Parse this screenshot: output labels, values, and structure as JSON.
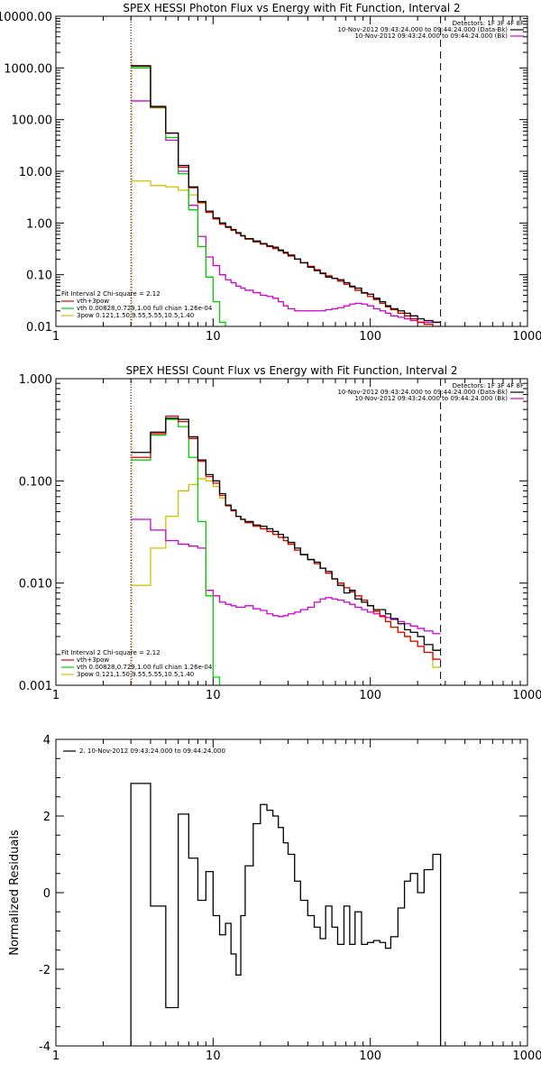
{
  "colors": {
    "data": "#000000",
    "red": "#e00000",
    "green": "#00d000",
    "magenta": "#d000d0",
    "yellow": "#d0c000",
    "orange": "#f08000"
  },
  "chart_data": [
    {
      "type": "line",
      "title": "SPEX HESSI Photon Flux vs Energy with Fit Function, Interval 2",
      "xlabel": "",
      "ylabel": "",
      "xscale": "log",
      "yscale": "log",
      "xlim": [
        1,
        1000
      ],
      "ylim": [
        0.01,
        10000
      ],
      "xticks": [
        "1",
        "10",
        "100",
        "1000"
      ],
      "yticks": [
        "0.01",
        "0.10",
        "1.00",
        "10.00",
        "100.00",
        "1000.00",
        "10000.00"
      ],
      "legend_right": [
        "Detectors: 1F 3F 4F 8F",
        "10-Nov-2012 09:43:24.000 to 09:44:24.000 (Data-Bk)",
        "10-Nov-2012 09:43:24.000 to 09:44:24.000 (Bk)"
      ],
      "legend_left": [
        "Fit Interval  2   Chi-square = 2.12",
        "vth+3pow",
        "vth 0.00828,0.729,1.00  full chian 1.26e-04",
        "3pow 0.121,1.50,9.55,5.55,10.5,1.40"
      ],
      "vlines": [
        3,
        280
      ],
      "edges": [
        3,
        4,
        5,
        6,
        7,
        8,
        9,
        10,
        11,
        12,
        13,
        14,
        15,
        16,
        18,
        20,
        22,
        24,
        26,
        28,
        30,
        33,
        36,
        40,
        44,
        48,
        52,
        57,
        62,
        68,
        74,
        80,
        88,
        96,
        105,
        115,
        125,
        135,
        150,
        165,
        180,
        200,
        220,
        250,
        280
      ],
      "series": [
        {
          "name": "Data-Bk",
          "color": "data",
          "values": [
            1100,
            180,
            55,
            13,
            5,
            2.6,
            1.7,
            1.25,
            1.0,
            0.85,
            0.75,
            0.65,
            0.57,
            0.5,
            0.45,
            0.4,
            0.36,
            0.34,
            0.3,
            0.27,
            0.24,
            0.2,
            0.17,
            0.14,
            0.12,
            0.105,
            0.09,
            0.085,
            0.08,
            0.07,
            0.06,
            0.055,
            0.045,
            0.042,
            0.035,
            0.03,
            0.025,
            0.022,
            0.02,
            0.018,
            0.016,
            0.014,
            0.013,
            0.012
          ]
        },
        {
          "name": "vth+3pow",
          "color": "red",
          "values": [
            1080,
            175,
            55,
            12,
            4.8,
            2.5,
            1.6,
            1.2,
            0.95,
            0.82,
            0.72,
            0.63,
            0.56,
            0.49,
            0.43,
            0.39,
            0.35,
            0.32,
            0.29,
            0.26,
            0.23,
            0.2,
            0.17,
            0.145,
            0.125,
            0.108,
            0.095,
            0.085,
            0.075,
            0.065,
            0.058,
            0.05,
            0.044,
            0.038,
            0.033,
            0.028,
            0.024,
            0.021,
            0.018,
            0.016,
            0.014,
            0.012,
            0.011,
            0.01
          ]
        },
        {
          "name": "vth",
          "color": "green",
          "values": [
            1000,
            170,
            45,
            9,
            1.8,
            0.35,
            0.09,
            0.03,
            0.012
          ]
        },
        {
          "name": "3pow",
          "color": "yellow",
          "values": [
            6.5,
            5.3,
            5.0,
            4.3,
            3.5,
            2.4,
            1.7,
            1.2,
            0.95,
            0.82,
            0.72,
            0.63,
            0.56,
            0.49,
            0.43,
            0.39,
            0.35,
            0.32,
            0.29,
            0.26,
            0.23,
            0.2,
            0.17,
            0.145,
            0.125,
            0.108,
            0.095,
            0.085,
            0.075,
            0.065,
            0.058,
            0.05,
            0.044,
            0.038,
            0.033,
            0.028,
            0.024,
            0.021,
            0.018,
            0.016,
            0.014,
            0.012,
            0.011,
            0.01
          ]
        },
        {
          "name": "Bk",
          "color": "magenta",
          "values": [
            230,
            170,
            40,
            10,
            2.2,
            0.55,
            0.22,
            0.15,
            0.1,
            0.08,
            0.07,
            0.06,
            0.055,
            0.05,
            0.045,
            0.04,
            0.038,
            0.035,
            0.03,
            0.025,
            0.022,
            0.02,
            0.02,
            0.02,
            0.02,
            0.02,
            0.021,
            0.022,
            0.023,
            0.025,
            0.027,
            0.028,
            0.027,
            0.025,
            0.022,
            0.02,
            0.018,
            0.016,
            0.015,
            0.014,
            0.013,
            0.012,
            0.012,
            0.012
          ]
        }
      ]
    },
    {
      "type": "line",
      "title": "SPEX HESSI Count Flux vs Energy with Fit Function, Interval 2",
      "xlabel": "",
      "ylabel": "",
      "xscale": "log",
      "yscale": "log",
      "xlim": [
        1,
        1000
      ],
      "ylim": [
        0.001,
        1
      ],
      "xticks": [
        "1",
        "10",
        "100",
        "1000"
      ],
      "yticks": [
        "0.001",
        "0.010",
        "0.100",
        "1.000"
      ],
      "legend_right": [
        "Detectors: 1F 3F 4F 8F",
        "10-Nov-2012 09:43:24.000 to 09:44:24.000 (Data-Bk)",
        "10-Nov-2012 09:43:24.000 to 09:44:24.000 (Bk)"
      ],
      "legend_left": [
        "Fit Interval  2   Chi-square = 2.12",
        "vth+3pow",
        "vth 0.00828,0.729,1.00  full chian 1.26e-04",
        "3pow 0.121,1.50,9.55,5.55,10.5,1.40"
      ],
      "vlines": [
        3,
        280
      ],
      "edges": [
        3,
        4,
        5,
        6,
        7,
        8,
        9,
        10,
        11,
        12,
        13,
        14,
        15,
        16,
        18,
        20,
        22,
        24,
        26,
        28,
        30,
        33,
        36,
        40,
        44,
        48,
        52,
        57,
        62,
        68,
        74,
        80,
        88,
        96,
        105,
        115,
        125,
        135,
        150,
        165,
        180,
        200,
        220,
        250,
        280
      ],
      "series": [
        {
          "name": "Data-Bk",
          "color": "data",
          "values": [
            0.19,
            0.3,
            0.41,
            0.4,
            0.27,
            0.16,
            0.115,
            0.1,
            0.075,
            0.058,
            0.052,
            0.045,
            0.042,
            0.04,
            0.037,
            0.036,
            0.034,
            0.032,
            0.03,
            0.028,
            0.025,
            0.022,
            0.019,
            0.017,
            0.016,
            0.014,
            0.013,
            0.011,
            0.0095,
            0.008,
            0.0085,
            0.007,
            0.0065,
            0.006,
            0.0055,
            0.0055,
            0.005,
            0.0045,
            0.004,
            0.0035,
            0.0033,
            0.003,
            0.0025,
            0.0022
          ]
        },
        {
          "name": "vth+3pow",
          "color": "red",
          "values": [
            0.17,
            0.29,
            0.43,
            0.38,
            0.26,
            0.155,
            0.11,
            0.095,
            0.072,
            0.057,
            0.051,
            0.045,
            0.042,
            0.039,
            0.036,
            0.034,
            0.032,
            0.03,
            0.028,
            0.026,
            0.024,
            0.021,
            0.019,
            0.017,
            0.0155,
            0.014,
            0.0125,
            0.011,
            0.01,
            0.009,
            0.0082,
            0.0075,
            0.0068,
            0.006,
            0.0053,
            0.0047,
            0.0042,
            0.0037,
            0.0033,
            0.003,
            0.0027,
            0.0024,
            0.0021,
            0.0018
          ]
        },
        {
          "name": "vth",
          "color": "green",
          "values": [
            0.16,
            0.28,
            0.4,
            0.34,
            0.17,
            0.04,
            0.0075,
            0.0012
          ]
        },
        {
          "name": "3pow",
          "color": "yellow",
          "values": [
            0.0095,
            0.022,
            0.045,
            0.08,
            0.092,
            0.105,
            0.1,
            0.088,
            0.068,
            0.057,
            0.051,
            0.045,
            0.042,
            0.039,
            0.036,
            0.034,
            0.032,
            0.03,
            0.028,
            0.026,
            0.024,
            0.021,
            0.019,
            0.017,
            0.0155,
            0.014,
            0.0125,
            0.011,
            0.01,
            0.009,
            0.0082,
            0.0075,
            0.0068,
            0.006,
            0.0053,
            0.0047,
            0.0042,
            0.0037,
            0.0033,
            0.003,
            0.0027,
            0.0024,
            0.0021,
            0.0015
          ]
        },
        {
          "name": "Bk",
          "color": "magenta",
          "values": [
            0.042,
            0.033,
            0.026,
            0.024,
            0.023,
            0.022,
            0.0085,
            0.0075,
            0.0065,
            0.0062,
            0.006,
            0.0058,
            0.0058,
            0.006,
            0.0056,
            0.0054,
            0.005,
            0.0048,
            0.0047,
            0.0048,
            0.005,
            0.0052,
            0.0055,
            0.0058,
            0.0065,
            0.007,
            0.0072,
            0.007,
            0.0068,
            0.0065,
            0.0062,
            0.0058,
            0.0055,
            0.0052,
            0.005,
            0.0048,
            0.0046,
            0.0044,
            0.0042,
            0.004,
            0.0038,
            0.0036,
            0.0034,
            0.0032
          ]
        }
      ]
    },
    {
      "type": "line",
      "title": "",
      "xlabel": "",
      "ylabel": "Normalized Residuals",
      "xscale": "log",
      "yscale": "linear",
      "xlim": [
        1,
        1000
      ],
      "ylim": [
        -4,
        4
      ],
      "xticks": [
        "1",
        "10",
        "100",
        "1000"
      ],
      "yticks": [
        "-4",
        "-2",
        "0",
        "2",
        "4"
      ],
      "legend_left": [
        "2. 10-Nov-2012 09:43:24.000 to 09:44:24.000"
      ],
      "edges": [
        3,
        4,
        5,
        6,
        7,
        8,
        9,
        10,
        11,
        12,
        13,
        14,
        15,
        16,
        18,
        20,
        22,
        24,
        26,
        28,
        30,
        33,
        36,
        40,
        44,
        48,
        52,
        57,
        62,
        68,
        74,
        80,
        88,
        96,
        105,
        115,
        125,
        135,
        150,
        165,
        180,
        200,
        220,
        250,
        280
      ],
      "series": [
        {
          "name": "2. 10-Nov-2012 09:43:24.000 to 09:44:24.000",
          "color": "data",
          "values": [
            2.85,
            -0.35,
            -3.0,
            2.05,
            0.9,
            -0.2,
            0.55,
            -0.6,
            -1.1,
            -0.8,
            -1.6,
            -2.15,
            -0.6,
            0.7,
            1.8,
            2.3,
            2.15,
            2.0,
            1.7,
            1.3,
            1.0,
            0.3,
            -0.2,
            -0.6,
            -0.9,
            -1.2,
            -0.35,
            -0.9,
            -1.35,
            -0.35,
            -1.35,
            -0.5,
            -1.35,
            -1.3,
            -1.25,
            -1.3,
            -1.45,
            -1.15,
            -0.4,
            0.3,
            0.5,
            0.0,
            0.6,
            1.0
          ]
        }
      ]
    }
  ]
}
